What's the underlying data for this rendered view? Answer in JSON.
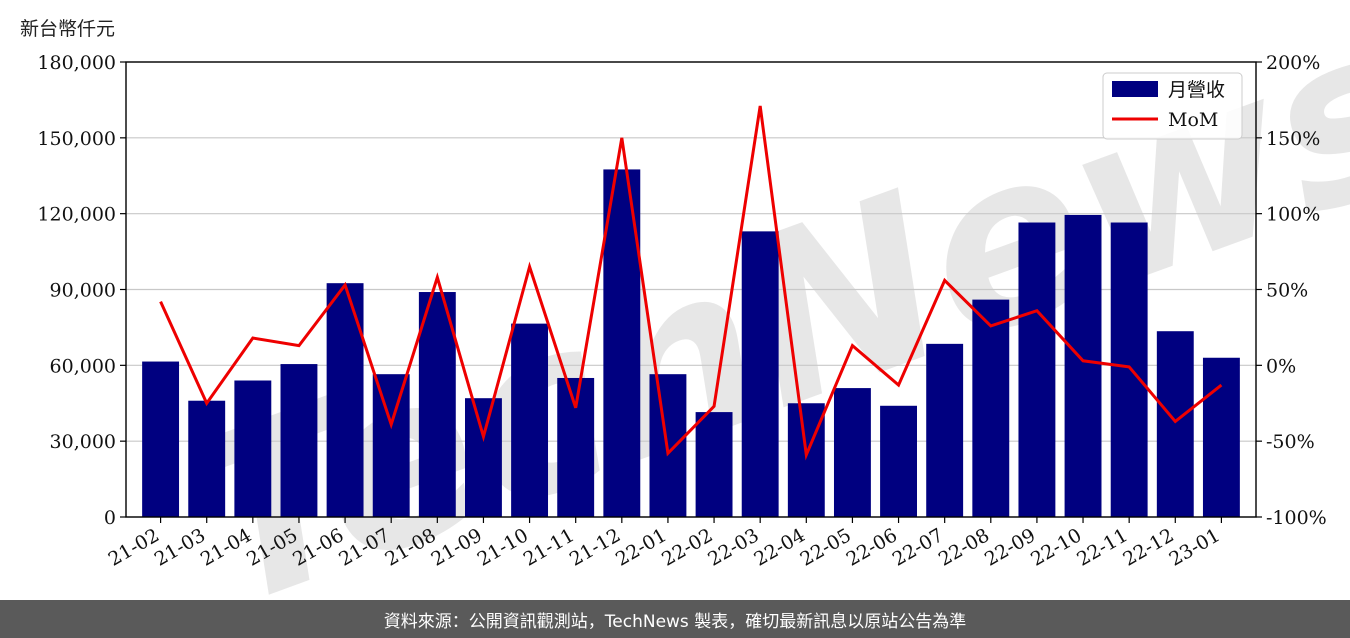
{
  "unit_label": "新台幣仟元",
  "footer_text": "資料來源：公開資訊觀測站，TechNews 製表，確切最新訊息以原站公告為準",
  "watermark": "TechNews",
  "chart_data": {
    "type": "bar",
    "categories": [
      "21-02",
      "21-03",
      "21-04",
      "21-05",
      "21-06",
      "21-07",
      "21-08",
      "21-09",
      "21-10",
      "21-11",
      "21-12",
      "22-01",
      "22-02",
      "22-03",
      "22-04",
      "22-05",
      "22-06",
      "22-07",
      "22-08",
      "22-09",
      "22-10",
      "22-11",
      "22-12",
      "23-01"
    ],
    "series": [
      {
        "name": "月營收",
        "type": "bar",
        "axis": "left",
        "color": "#000080",
        "values": [
          61500,
          46000,
          54000,
          60500,
          92500,
          56500,
          89000,
          47000,
          76500,
          55000,
          137500,
          56500,
          41500,
          113000,
          45000,
          51000,
          44000,
          68500,
          86000,
          116500,
          119500,
          116500,
          73500,
          63000
        ]
      },
      {
        "name": "MoM",
        "type": "line",
        "axis": "right",
        "color": "#ee0000",
        "values": [
          42,
          -25,
          18,
          13,
          53,
          -39,
          58,
          -47,
          65,
          -28,
          150,
          -58,
          -27,
          171,
          -59,
          13,
          -13,
          56,
          26,
          36,
          3,
          -1,
          -37,
          -13
        ]
      }
    ],
    "y_left": {
      "min": 0,
      "max": 180000,
      "ticks": [
        0,
        30000,
        60000,
        90000,
        120000,
        150000,
        180000
      ],
      "tick_labels": [
        "0",
        "30,000",
        "60,000",
        "90,000",
        "120,000",
        "150,000",
        "180,000"
      ]
    },
    "y_right": {
      "min": -100,
      "max": 200,
      "ticks": [
        -100,
        -50,
        0,
        50,
        100,
        150,
        200
      ],
      "tick_labels": [
        "-100%",
        "-50%",
        "0%",
        "50%",
        "100%",
        "150%",
        "200%"
      ]
    },
    "grid": true,
    "legend_position": "top-right"
  }
}
